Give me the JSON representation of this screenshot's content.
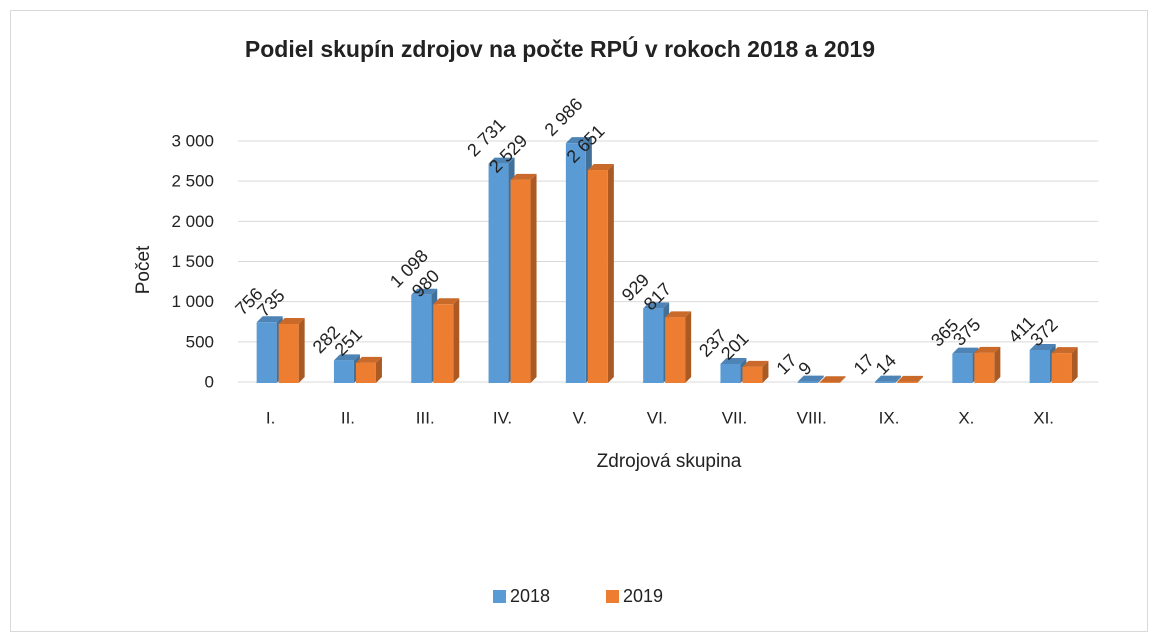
{
  "chart_data": {
    "type": "bar3d",
    "title": "Podiel skupín zdrojov na počte RPÚ v rokoch 2018 a 2019",
    "x_label": "Zdrojová skupina",
    "y_label": "Počet",
    "categories": [
      "I.",
      "II.",
      "III.",
      "IV.",
      "V.",
      "VI.",
      "VII.",
      "VIII.",
      "IX.",
      "X.",
      "XI."
    ],
    "series": [
      {
        "name": "2018",
        "color": "#5b9bd5",
        "values": [
          756,
          282,
          1098,
          2731,
          2986,
          929,
          237,
          17,
          17,
          365,
          411
        ],
        "value_labels": [
          "756",
          "282",
          "1 098",
          "2 731",
          "2 986",
          "929",
          "237",
          "17",
          "17",
          "365",
          "411"
        ]
      },
      {
        "name": "2019",
        "color": "#ed7d31",
        "values": [
          735,
          251,
          980,
          2529,
          2651,
          817,
          201,
          9,
          14,
          375,
          372
        ],
        "value_labels": [
          "735",
          "251",
          "980",
          "2 529",
          "2 651",
          "817",
          "201",
          "9",
          "14",
          "375",
          "372"
        ]
      }
    ],
    "ylim": [
      0,
      3000
    ],
    "yticks": [
      0,
      500,
      {
        "value": 1000,
        "label": "1 000"
      },
      {
        "value": 1500,
        "label": "1 500"
      },
      {
        "value": 2000,
        "label": "2 000"
      },
      {
        "value": 2500,
        "label": "2 500"
      },
      {
        "value": 3000,
        "label": "3 000"
      }
    ],
    "grid": true,
    "legend": "bottom"
  }
}
